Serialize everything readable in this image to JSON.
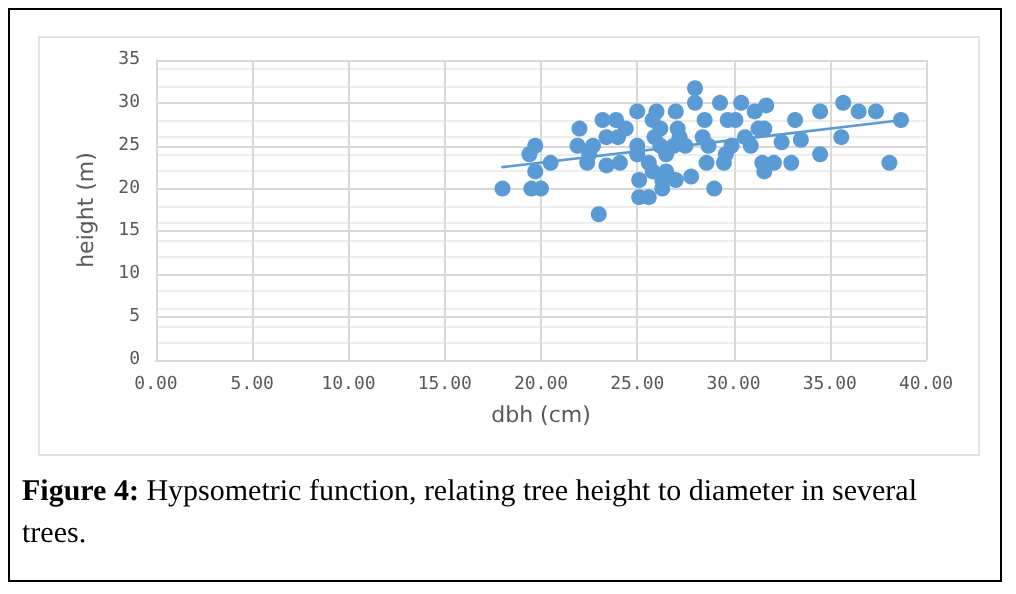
{
  "chart_data": {
    "type": "scatter",
    "xlabel": "dbh (cm)",
    "ylabel": "height (m)",
    "annotations": [
      "Figure 4: Hypsometric function, relating tree height to diameter in several trees."
    ],
    "xlim": [
      0,
      40
    ],
    "ylim": [
      0,
      35
    ],
    "xticks": [
      {
        "value": 0,
        "label": "0.00"
      },
      {
        "value": 5,
        "label": "5.00"
      },
      {
        "value": 10,
        "label": "10.00"
      },
      {
        "value": 15,
        "label": "15.00"
      },
      {
        "value": 20,
        "label": "20.00"
      },
      {
        "value": 25,
        "label": "25.00"
      },
      {
        "value": 30,
        "label": "30.00"
      },
      {
        "value": 35,
        "label": "35.00"
      },
      {
        "value": 40,
        "label": "40.00"
      }
    ],
    "yticks": [
      0,
      5,
      10,
      15,
      20,
      25,
      30,
      35
    ],
    "grid": true,
    "marker": "circle",
    "series": [
      {
        "color": "#5b9bd5",
        "x": [
          18.0,
          19.5,
          20.0,
          19.7,
          19.4,
          19.7,
          20.5,
          22.0,
          21.9,
          22.4,
          22.5,
          22.7,
          23.0,
          23.2,
          23.9,
          23.4,
          24.0,
          23.4,
          24.1,
          24.4,
          25.0,
          25.0,
          25.0,
          25.1,
          25.1,
          25.6,
          26.0,
          25.8,
          25.9,
          26.2,
          26.2,
          25.8,
          26.3,
          26.3,
          26.5,
          27.0,
          27.0,
          27.1,
          27.2,
          26.9,
          27.8,
          28.0,
          28.0,
          28.5,
          28.4,
          28.7,
          28.6,
          29.0,
          29.3,
          29.7,
          29.9,
          29.5,
          29.6,
          30.4,
          30.1,
          30.6,
          30.9,
          31.1,
          31.3,
          31.6,
          31.7,
          31.5,
          31.6,
          32.1,
          32.5,
          33.2,
          33.0,
          33.5,
          34.5,
          34.5,
          35.6,
          35.7,
          36.5,
          37.4,
          38.1,
          38.7,
          26.5,
          25.6,
          27.5
        ],
        "values": [
          20,
          20,
          20,
          22,
          24,
          25,
          23,
          27,
          25,
          23,
          24,
          25,
          17,
          28,
          28,
          26,
          26,
          22.7,
          23,
          27,
          29,
          25,
          24,
          21,
          19,
          19,
          29,
          28,
          26,
          27,
          25,
          22,
          20,
          21,
          22,
          21,
          29,
          27,
          26,
          25,
          21.4,
          31.7,
          30,
          28,
          26,
          25,
          23,
          20,
          30,
          28,
          25,
          23,
          24,
          30,
          28,
          26,
          25,
          29,
          27,
          27,
          29.7,
          23,
          22,
          23,
          25.4,
          28,
          23,
          25.7,
          29,
          24,
          26,
          30,
          29,
          29,
          23,
          28,
          24,
          23,
          25
        ]
      },
      {
        "type": "line",
        "color": "#5b9bd5",
        "x": [
          18.0,
          38.8
        ],
        "values": [
          22.5,
          28
        ],
        "marker": "none",
        "line_style": "solid"
      }
    ]
  }
}
